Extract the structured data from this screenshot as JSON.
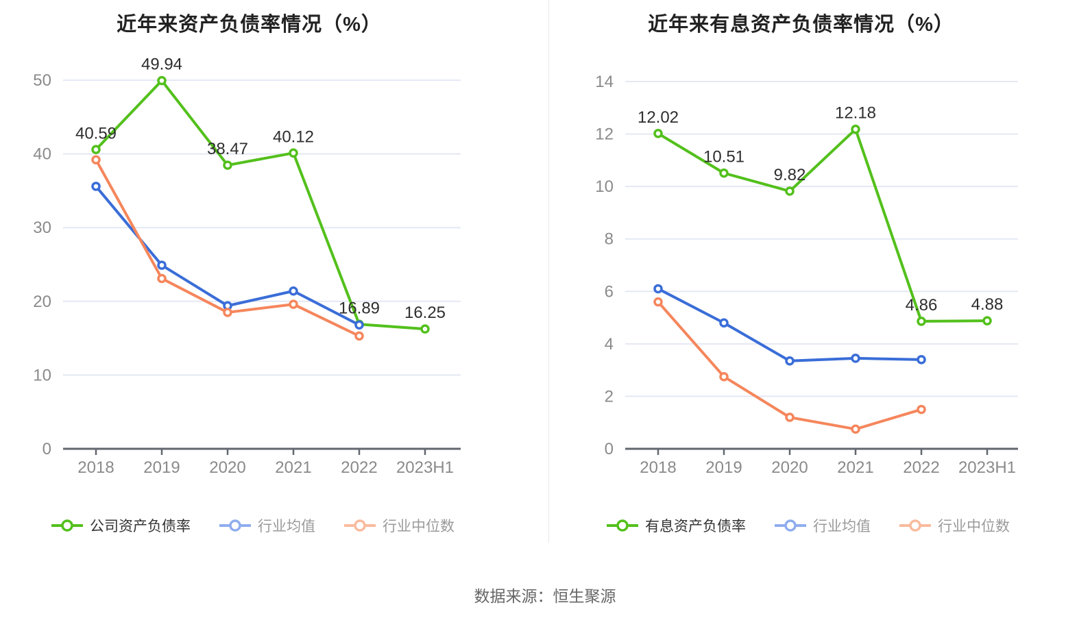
{
  "source_note": "数据来源：恒生聚源",
  "style": {
    "background": "#ffffff",
    "grid_color": "#e4e8f3",
    "axis_color": "#62666e",
    "tick_label_color": "#8a8a8a",
    "title_color": "#222222",
    "data_label_color": "#2e2e2e",
    "source_color": "#666666",
    "green": "#53c01c",
    "blue": "#3a6dd8",
    "orange": "#f5865c",
    "legend_blue_light": "#8fadee",
    "legend_orange_light": "#f9bb9e"
  },
  "chart_data": [
    {
      "type": "line",
      "title": "近年来资产负债率情况（%）",
      "xlabel": "",
      "ylabel": "",
      "categories": [
        "2018",
        "2019",
        "2020",
        "2021",
        "2022",
        "2023H1"
      ],
      "ylim": [
        0,
        50
      ],
      "yticks": [
        0,
        10,
        20,
        30,
        40,
        50
      ],
      "grid": true,
      "legend_position": "bottom",
      "series": [
        {
          "name": "公司资产负债率",
          "values": [
            40.59,
            49.94,
            38.47,
            40.12,
            16.89,
            16.25
          ],
          "color": "#53c01c",
          "legend_color": "#53c01c",
          "show_labels": true
        },
        {
          "name": "行业均值",
          "values": [
            35.6,
            24.9,
            19.4,
            21.4,
            16.8,
            null
          ],
          "color": "#3a6dd8",
          "legend_color": "#8fadee",
          "show_labels": false
        },
        {
          "name": "行业中位数",
          "values": [
            39.2,
            23.1,
            18.5,
            19.6,
            15.3,
            null
          ],
          "color": "#f5865c",
          "legend_color": "#f9bb9e",
          "show_labels": false
        }
      ]
    },
    {
      "type": "line",
      "title": "近年来有息资产负债率情况（%）",
      "xlabel": "",
      "ylabel": "",
      "categories": [
        "2018",
        "2019",
        "2020",
        "2021",
        "2022",
        "2023H1"
      ],
      "ylim": [
        0,
        14
      ],
      "yticks": [
        0,
        2,
        4,
        6,
        8,
        10,
        12,
        14
      ],
      "grid": true,
      "legend_position": "bottom",
      "series": [
        {
          "name": "有息资产负债率",
          "values": [
            12.02,
            10.51,
            9.82,
            12.18,
            4.86,
            4.88
          ],
          "color": "#53c01c",
          "legend_color": "#53c01c",
          "show_labels": true
        },
        {
          "name": "行业均值",
          "values": [
            6.1,
            4.8,
            3.35,
            3.45,
            3.4,
            null
          ],
          "color": "#3a6dd8",
          "legend_color": "#8fadee",
          "show_labels": false
        },
        {
          "name": "行业中位数",
          "values": [
            5.6,
            2.75,
            1.2,
            0.75,
            1.5,
            null
          ],
          "color": "#f5865c",
          "legend_color": "#f9bb9e",
          "show_labels": false
        }
      ]
    }
  ]
}
